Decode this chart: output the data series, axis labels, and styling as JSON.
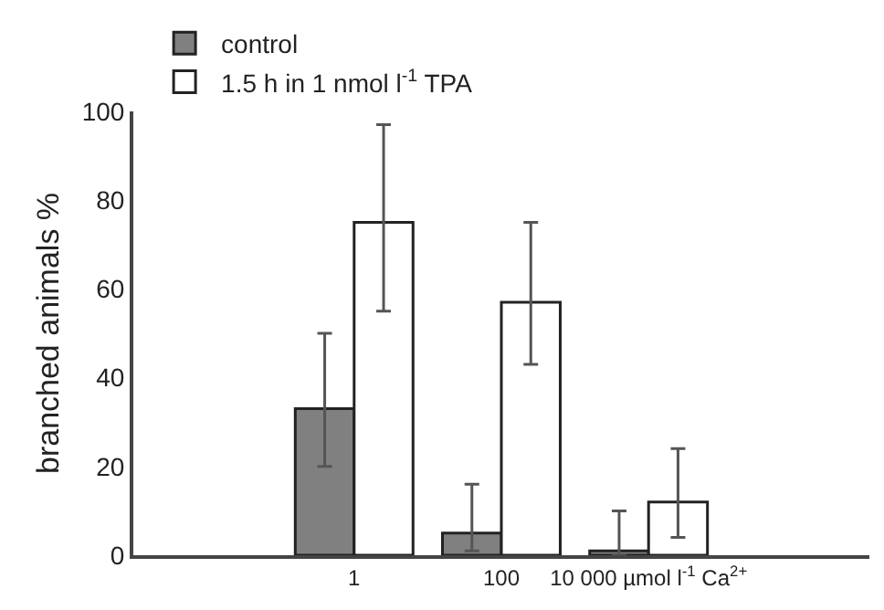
{
  "chart_data": {
    "type": "bar",
    "ylabel": "branched animals %",
    "categories": [
      null,
      "1",
      "100",
      "10 000 µmol l$^{-1}$ Ca$^{2+}$",
      null
    ],
    "series": [
      {
        "name": "control",
        "color": "#808080",
        "values": [
          null,
          33,
          5,
          1,
          null
        ],
        "errors": [
          null,
          [
            20,
            50
          ],
          [
            1,
            16
          ],
          [
            0,
            10
          ],
          null
        ]
      },
      {
        "name": "1.5 h in 1 nmol l$^{-1}$ TPA",
        "color": "#ffffff",
        "values": [
          null,
          75,
          57,
          12,
          null
        ],
        "errors": [
          null,
          [
            55,
            97
          ],
          [
            43,
            75
          ],
          [
            4,
            24
          ],
          null
        ]
      }
    ],
    "ylim": [
      0,
      100
    ],
    "yticks": [
      0,
      20,
      40,
      60,
      80,
      100
    ],
    "legend": "top left"
  }
}
